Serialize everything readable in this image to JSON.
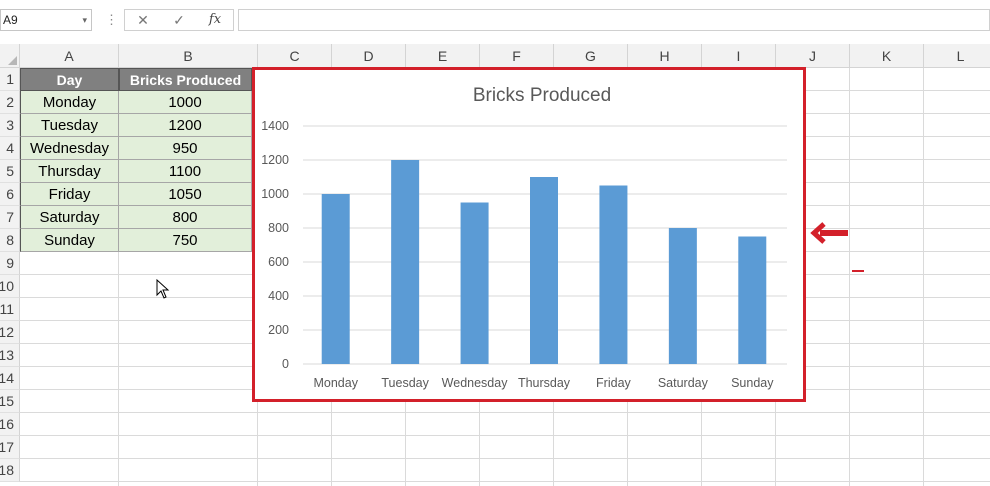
{
  "formula_bar": {
    "name_box": "A9",
    "dropdown": "▾",
    "separator": "⋮",
    "cancel": "✕",
    "enter": "✓",
    "fx": "fx",
    "formula": ""
  },
  "grid": {
    "columns": [
      "A",
      "B",
      "C",
      "D",
      "E",
      "F",
      "G",
      "H",
      "I",
      "J",
      "K",
      "L"
    ],
    "rows": [
      "1",
      "2",
      "3",
      "4",
      "5",
      "6",
      "7",
      "8",
      "9",
      "10",
      "11",
      "12",
      "13",
      "14",
      "15",
      "16",
      "17",
      "18"
    ]
  },
  "table": {
    "headers": [
      "Day",
      "Bricks Produced"
    ],
    "rows": [
      [
        "Monday",
        "1000"
      ],
      [
        "Tuesday",
        "1200"
      ],
      [
        "Wednesday",
        "950"
      ],
      [
        "Thursday",
        "1100"
      ],
      [
        "Friday",
        "1050"
      ],
      [
        "Saturday",
        "800"
      ],
      [
        "Sunday",
        "750"
      ]
    ]
  },
  "chart_data": {
    "type": "bar",
    "title": "Bricks Produced",
    "categories": [
      "Monday",
      "Tuesday",
      "Wednesday",
      "Thursday",
      "Friday",
      "Saturday",
      "Sunday"
    ],
    "values": [
      1000,
      1200,
      950,
      1100,
      1050,
      800,
      750
    ],
    "yticks": [
      "0",
      "200",
      "400",
      "600",
      "800",
      "1000",
      "1200",
      "1400"
    ],
    "ylim": [
      0,
      1400
    ],
    "xlabel": "",
    "ylabel": "",
    "grid": true,
    "bar_color": "#5b9bd5",
    "border_color": "#d3202a"
  },
  "annotation": {
    "arrow_icon": "left-arrow-icon",
    "color": "#d3202a"
  }
}
